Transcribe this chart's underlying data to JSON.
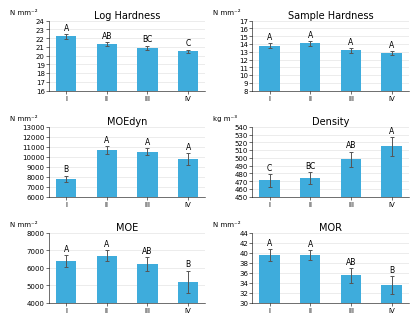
{
  "charts": [
    {
      "title": "Log Hardness",
      "ylabel": "N mm⁻²",
      "ylim": [
        16,
        24
      ],
      "yticks": [
        16,
        17,
        18,
        19,
        20,
        21,
        22,
        23,
        24
      ],
      "values": [
        22.2,
        21.3,
        20.9,
        20.5
      ],
      "errors": [
        0.3,
        0.25,
        0.25,
        0.2
      ],
      "labels": [
        "I",
        "II",
        "III",
        "IV"
      ],
      "sig_labels": [
        "A",
        "AB",
        "BC",
        "C"
      ]
    },
    {
      "title": "Sample Hardness",
      "ylabel": "N mm⁻²",
      "ylim": [
        8,
        17
      ],
      "yticks": [
        8,
        9,
        10,
        11,
        12,
        13,
        14,
        15,
        16,
        17
      ],
      "values": [
        13.8,
        14.1,
        13.2,
        12.8
      ],
      "errors": [
        0.35,
        0.3,
        0.3,
        0.25
      ],
      "labels": [
        "I",
        "II",
        "III",
        "IV"
      ],
      "sig_labels": [
        "A",
        "A",
        "A",
        "A"
      ]
    },
    {
      "title": "MOEdyn",
      "ylabel": "N mm⁻²",
      "ylim": [
        6000,
        13000
      ],
      "yticks": [
        6000,
        7000,
        8000,
        9000,
        10000,
        11000,
        12000,
        13000
      ],
      "values": [
        7800,
        10700,
        10500,
        9800
      ],
      "errors": [
        300,
        400,
        350,
        600
      ],
      "labels": [
        "I",
        "II",
        "III",
        "IV"
      ],
      "sig_labels": [
        "B",
        "A",
        "A",
        "A"
      ]
    },
    {
      "title": "Density",
      "ylabel": "kg m⁻³",
      "ylim": [
        450,
        540
      ],
      "yticks": [
        450,
        460,
        470,
        480,
        490,
        500,
        510,
        520,
        530,
        540
      ],
      "values": [
        471,
        474,
        498,
        515
      ],
      "errors": [
        8,
        8,
        10,
        12
      ],
      "labels": [
        "I",
        "II",
        "III",
        "IV"
      ],
      "sig_labels": [
        "C",
        "BC",
        "AB",
        "A"
      ]
    },
    {
      "title": "MOE",
      "ylabel": "N mm⁻²",
      "ylim": [
        4000,
        8000
      ],
      "yticks": [
        4000,
        5000,
        6000,
        7000,
        8000
      ],
      "values": [
        6400,
        6700,
        6200,
        5200
      ],
      "errors": [
        350,
        300,
        400,
        650
      ],
      "labels": [
        "I",
        "II",
        "III",
        "IV"
      ],
      "sig_labels": [
        "A",
        "A",
        "AB",
        "B"
      ]
    },
    {
      "title": "MOR",
      "ylabel": "N mm⁻²",
      "ylim": [
        30,
        44
      ],
      "yticks": [
        30,
        32,
        34,
        36,
        38,
        40,
        42,
        44
      ],
      "values": [
        39.5,
        39.5,
        35.5,
        33.5
      ],
      "errors": [
        1.2,
        1.0,
        1.5,
        1.8
      ],
      "labels": [
        "I",
        "II",
        "III",
        "IV"
      ],
      "sig_labels": [
        "A",
        "A",
        "AB",
        "B"
      ]
    }
  ],
  "bar_color": "#3eacdc",
  "error_color": "#555555",
  "background_color": "#ffffff",
  "sig_fontsize": 5.5,
  "title_fontsize": 7.0,
  "tick_fontsize": 5.0,
  "ylabel_fontsize": 5.0,
  "bar_width": 0.5
}
